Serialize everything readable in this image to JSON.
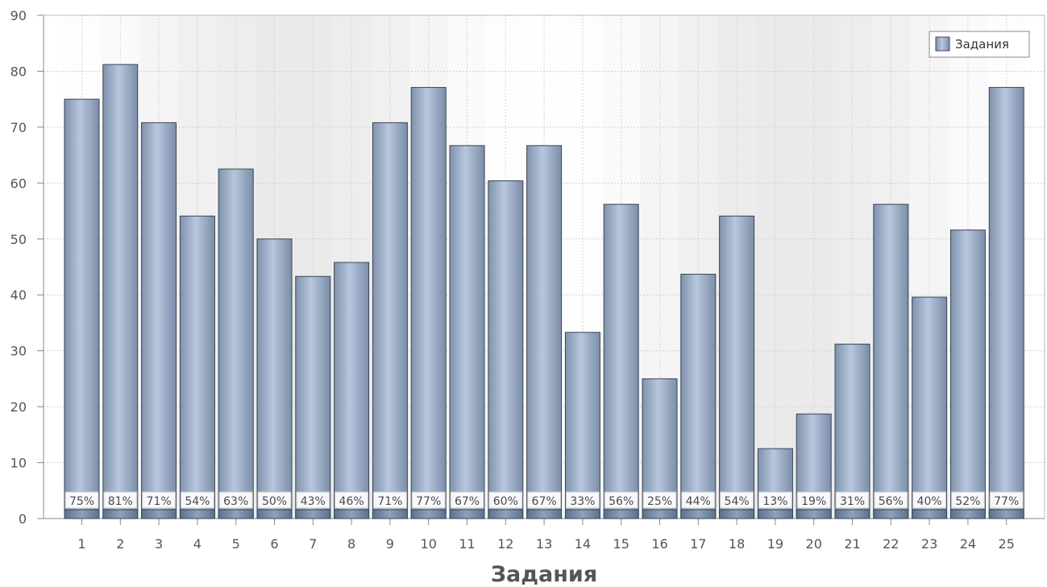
{
  "chart_data": {
    "type": "bar",
    "xlabel": "Задания",
    "ylabel": "",
    "ylim": [
      0,
      90
    ],
    "yticks": [
      0,
      10,
      20,
      30,
      40,
      50,
      60,
      70,
      80,
      90
    ],
    "grid": true,
    "legend": {
      "position": "top-right",
      "entries": [
        "Задания"
      ]
    },
    "categories": [
      "1",
      "2",
      "3",
      "4",
      "5",
      "6",
      "7",
      "8",
      "9",
      "10",
      "11",
      "12",
      "13",
      "14",
      "15",
      "16",
      "17",
      "18",
      "19",
      "20",
      "21",
      "22",
      "23",
      "24",
      "25"
    ],
    "series": [
      {
        "name": "Задания",
        "values": [
          75,
          81.2,
          70.8,
          54.1,
          62.5,
          50,
          43.3,
          45.8,
          70.8,
          77.1,
          66.7,
          60.4,
          66.7,
          33.3,
          56.2,
          25,
          43.7,
          54.1,
          12.5,
          18.7,
          31.2,
          56.2,
          39.6,
          51.6,
          77.1
        ],
        "data_labels": [
          "75%",
          "81%",
          "71%",
          "54%",
          "63%",
          "50%",
          "43%",
          "46%",
          "71%",
          "77%",
          "67%",
          "60%",
          "67%",
          "33%",
          "56%",
          "25%",
          "44%",
          "54%",
          "13%",
          "19%",
          "31%",
          "56%",
          "40%",
          "52%",
          "77%"
        ],
        "color": "#9fb0c8"
      }
    ]
  }
}
